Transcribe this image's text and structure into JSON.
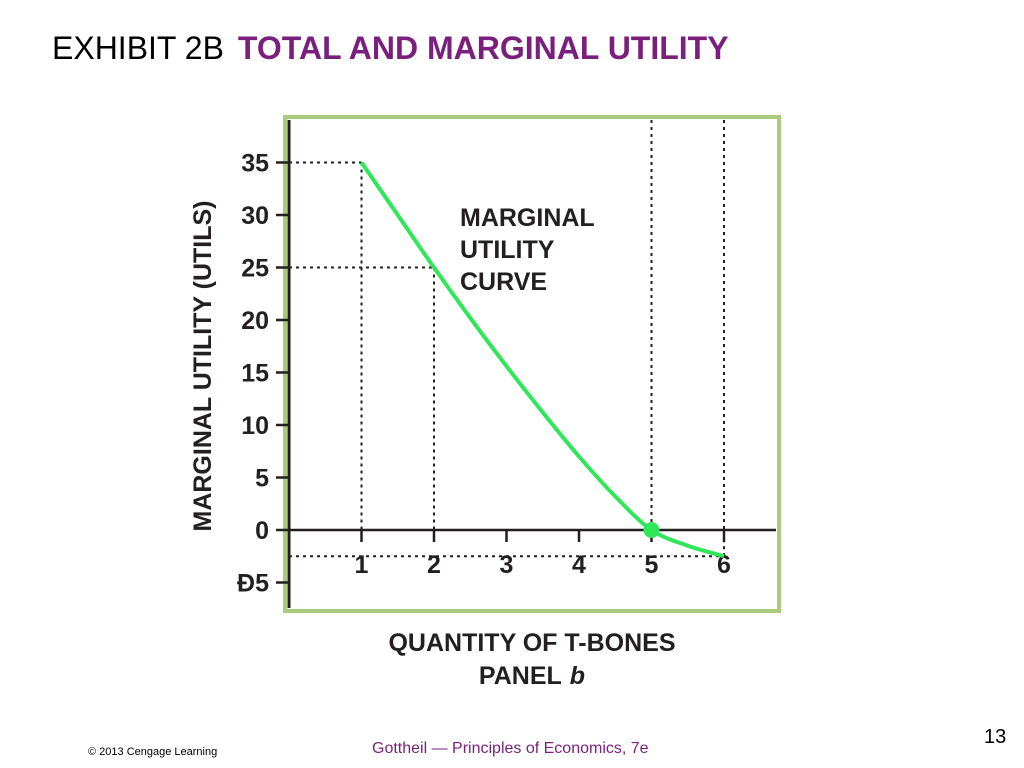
{
  "header": {
    "exhibit_label": "EXHIBIT 2B",
    "exhibit_title": "TOTAL AND MARGINAL UTILITY"
  },
  "footer": {
    "copyright": "© 2013 Cengage Learning",
    "book": "Gottheil — Principles of Economics, 7e",
    "page_number": "13"
  },
  "colors": {
    "title_accent": "#7b1f7e",
    "curve": "#2ee85a",
    "frame": "#a8cc7a",
    "axis": "#231f20"
  },
  "chart_data": {
    "type": "line",
    "xlabel": "QUANTITY OF T-BONES",
    "panel_prefix": "PANEL",
    "panel_letter": "b",
    "ylabel": "MARGINAL UTILITY (UTILS)",
    "curve_label": [
      "MARGINAL",
      "UTILITY",
      "CURVE"
    ],
    "x_ticks": [
      "1",
      "2",
      "3",
      "4",
      "5",
      "6"
    ],
    "y_ticks": [
      {
        "value": 35,
        "label": "35"
      },
      {
        "value": 30,
        "label": "30"
      },
      {
        "value": 25,
        "label": "25"
      },
      {
        "value": 20,
        "label": "20"
      },
      {
        "value": 15,
        "label": "15"
      },
      {
        "value": 10,
        "label": "10"
      },
      {
        "value": 5,
        "label": "5"
      },
      {
        "value": 0,
        "label": "0"
      },
      {
        "value": -5,
        "label": "Đ5"
      }
    ],
    "xlim": [
      0,
      6.7
    ],
    "ylim": [
      -7.5,
      38.5
    ],
    "series": [
      {
        "x": [
          1,
          1.5,
          2,
          2.5,
          3,
          3.5,
          4,
          4.5,
          5,
          5.5,
          6
        ],
        "y": [
          35,
          30,
          25,
          20.2,
          15.6,
          11.2,
          7,
          3.2,
          0,
          -1.5,
          -2.5
        ]
      }
    ],
    "highlight_point": {
      "x": 5,
      "y": 0
    },
    "guide_lines": [
      {
        "x": 1,
        "y": 35
      },
      {
        "x": 2,
        "y": 25
      },
      {
        "x": 6,
        "y": -2.5
      }
    ],
    "vertical_guides": [
      5,
      6
    ],
    "grid": false
  }
}
